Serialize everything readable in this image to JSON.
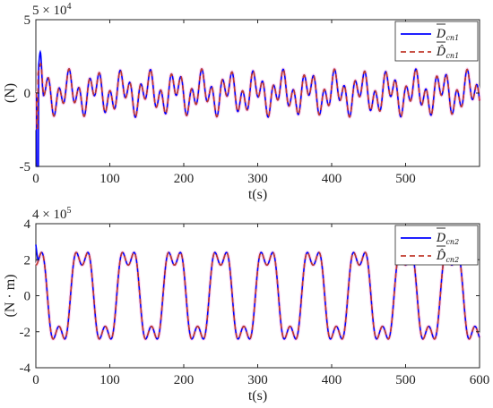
{
  "chart_data": [
    {
      "type": "line",
      "ylabel": "(N)",
      "xlabel": "t(s)",
      "y_exponent": "5 × 10",
      "y_exponent_power": "4",
      "xlim": [
        0,
        600
      ],
      "ylim": [
        -5,
        5
      ],
      "x_ticks": [
        0,
        100,
        200,
        300,
        400,
        500
      ],
      "y_ticks": [
        -5,
        0,
        5
      ],
      "legend_position": "top-right",
      "series": [
        {
          "name": "D",
          "name_sub": "cn1",
          "style": "solid",
          "color": "#0000ff"
        },
        {
          "name": "D̂",
          "name_sub": "cn1",
          "style": "dashed",
          "color": "#c0392b"
        }
      ],
      "signal": {
        "components": [
          {
            "amplitude": 0.9,
            "period": 13.8
          },
          {
            "amplitude": 0.75,
            "period": 36.0
          }
        ],
        "transient": {
          "peak": 2.8,
          "peak_time": 6,
          "trough": -5,
          "trough_time": 2
        },
        "estimate_peak": 2.0
      },
      "grid": false
    },
    {
      "type": "line",
      "ylabel": "(N · m)",
      "xlabel": "t(s)",
      "y_exponent": "4 × 10",
      "y_exponent_power": "5",
      "xlim": [
        0,
        600
      ],
      "ylim": [
        -4,
        4
      ],
      "x_ticks": [
        0,
        100,
        200,
        300,
        400,
        500,
        600
      ],
      "y_ticks": [
        -4,
        -2,
        0,
        2,
        4
      ],
      "legend_position": "top-right",
      "series": [
        {
          "name": "D",
          "name_sub": "cn2",
          "style": "solid",
          "color": "#0000ff"
        },
        {
          "name": "D̂",
          "name_sub": "cn2",
          "style": "dashed",
          "color": "#c0392b"
        }
      ],
      "signal": {
        "components": [
          {
            "amplitude": 2.55,
            "period": 62.5
          },
          {
            "amplitude": 0.85,
            "period": 20.8333
          }
        ],
        "start_value": 3.6
      },
      "grid": false
    }
  ]
}
